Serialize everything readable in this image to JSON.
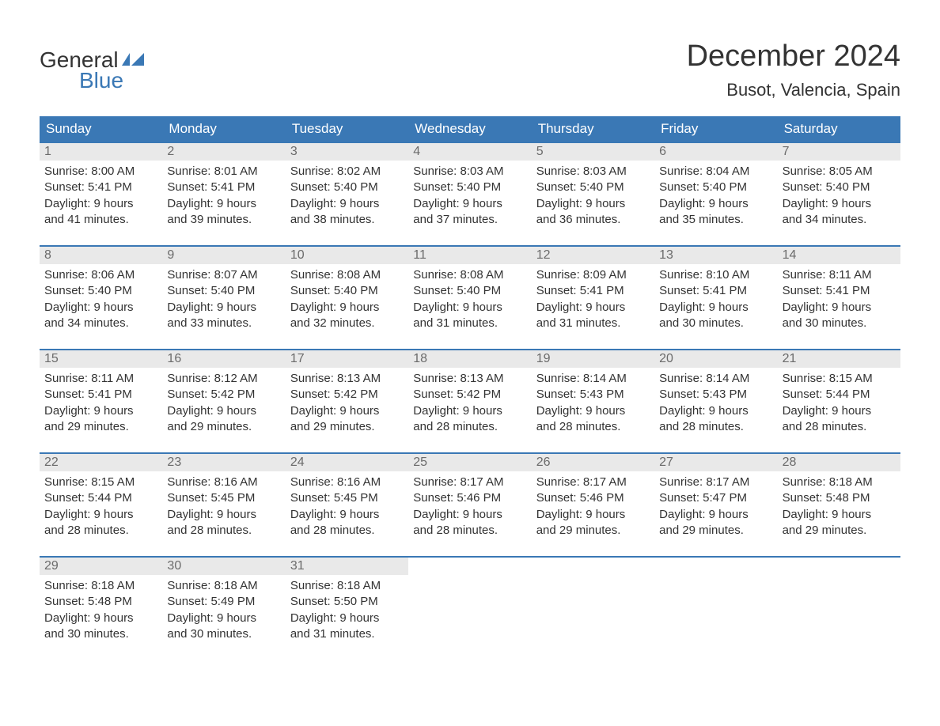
{
  "logo": {
    "text1": "General",
    "text2": "Blue",
    "icon_color": "#3a78b5"
  },
  "header": {
    "month_title": "December 2024",
    "location": "Busot, Valencia, Spain"
  },
  "colors": {
    "header_bg": "#3a78b5",
    "header_text": "#ffffff",
    "daynum_bg": "#e9e9e9",
    "daynum_text": "#6b6b6b",
    "body_text": "#333333",
    "page_bg": "#ffffff",
    "row_border": "#3a78b5"
  },
  "typography": {
    "month_title_fontsize": 38,
    "location_fontsize": 22,
    "weekday_fontsize": 17,
    "daynum_fontsize": 16,
    "body_fontsize": 15,
    "logo_fontsize": 28,
    "font_family": "Arial"
  },
  "weekdays": [
    "Sunday",
    "Monday",
    "Tuesday",
    "Wednesday",
    "Thursday",
    "Friday",
    "Saturday"
  ],
  "weeks": [
    [
      {
        "day": "1",
        "sunrise": "Sunrise: 8:00 AM",
        "sunset": "Sunset: 5:41 PM",
        "daylight1": "Daylight: 9 hours",
        "daylight2": "and 41 minutes."
      },
      {
        "day": "2",
        "sunrise": "Sunrise: 8:01 AM",
        "sunset": "Sunset: 5:41 PM",
        "daylight1": "Daylight: 9 hours",
        "daylight2": "and 39 minutes."
      },
      {
        "day": "3",
        "sunrise": "Sunrise: 8:02 AM",
        "sunset": "Sunset: 5:40 PM",
        "daylight1": "Daylight: 9 hours",
        "daylight2": "and 38 minutes."
      },
      {
        "day": "4",
        "sunrise": "Sunrise: 8:03 AM",
        "sunset": "Sunset: 5:40 PM",
        "daylight1": "Daylight: 9 hours",
        "daylight2": "and 37 minutes."
      },
      {
        "day": "5",
        "sunrise": "Sunrise: 8:03 AM",
        "sunset": "Sunset: 5:40 PM",
        "daylight1": "Daylight: 9 hours",
        "daylight2": "and 36 minutes."
      },
      {
        "day": "6",
        "sunrise": "Sunrise: 8:04 AM",
        "sunset": "Sunset: 5:40 PM",
        "daylight1": "Daylight: 9 hours",
        "daylight2": "and 35 minutes."
      },
      {
        "day": "7",
        "sunrise": "Sunrise: 8:05 AM",
        "sunset": "Sunset: 5:40 PM",
        "daylight1": "Daylight: 9 hours",
        "daylight2": "and 34 minutes."
      }
    ],
    [
      {
        "day": "8",
        "sunrise": "Sunrise: 8:06 AM",
        "sunset": "Sunset: 5:40 PM",
        "daylight1": "Daylight: 9 hours",
        "daylight2": "and 34 minutes."
      },
      {
        "day": "9",
        "sunrise": "Sunrise: 8:07 AM",
        "sunset": "Sunset: 5:40 PM",
        "daylight1": "Daylight: 9 hours",
        "daylight2": "and 33 minutes."
      },
      {
        "day": "10",
        "sunrise": "Sunrise: 8:08 AM",
        "sunset": "Sunset: 5:40 PM",
        "daylight1": "Daylight: 9 hours",
        "daylight2": "and 32 minutes."
      },
      {
        "day": "11",
        "sunrise": "Sunrise: 8:08 AM",
        "sunset": "Sunset: 5:40 PM",
        "daylight1": "Daylight: 9 hours",
        "daylight2": "and 31 minutes."
      },
      {
        "day": "12",
        "sunrise": "Sunrise: 8:09 AM",
        "sunset": "Sunset: 5:41 PM",
        "daylight1": "Daylight: 9 hours",
        "daylight2": "and 31 minutes."
      },
      {
        "day": "13",
        "sunrise": "Sunrise: 8:10 AM",
        "sunset": "Sunset: 5:41 PM",
        "daylight1": "Daylight: 9 hours",
        "daylight2": "and 30 minutes."
      },
      {
        "day": "14",
        "sunrise": "Sunrise: 8:11 AM",
        "sunset": "Sunset: 5:41 PM",
        "daylight1": "Daylight: 9 hours",
        "daylight2": "and 30 minutes."
      }
    ],
    [
      {
        "day": "15",
        "sunrise": "Sunrise: 8:11 AM",
        "sunset": "Sunset: 5:41 PM",
        "daylight1": "Daylight: 9 hours",
        "daylight2": "and 29 minutes."
      },
      {
        "day": "16",
        "sunrise": "Sunrise: 8:12 AM",
        "sunset": "Sunset: 5:42 PM",
        "daylight1": "Daylight: 9 hours",
        "daylight2": "and 29 minutes."
      },
      {
        "day": "17",
        "sunrise": "Sunrise: 8:13 AM",
        "sunset": "Sunset: 5:42 PM",
        "daylight1": "Daylight: 9 hours",
        "daylight2": "and 29 minutes."
      },
      {
        "day": "18",
        "sunrise": "Sunrise: 8:13 AM",
        "sunset": "Sunset: 5:42 PM",
        "daylight1": "Daylight: 9 hours",
        "daylight2": "and 28 minutes."
      },
      {
        "day": "19",
        "sunrise": "Sunrise: 8:14 AM",
        "sunset": "Sunset: 5:43 PM",
        "daylight1": "Daylight: 9 hours",
        "daylight2": "and 28 minutes."
      },
      {
        "day": "20",
        "sunrise": "Sunrise: 8:14 AM",
        "sunset": "Sunset: 5:43 PM",
        "daylight1": "Daylight: 9 hours",
        "daylight2": "and 28 minutes."
      },
      {
        "day": "21",
        "sunrise": "Sunrise: 8:15 AM",
        "sunset": "Sunset: 5:44 PM",
        "daylight1": "Daylight: 9 hours",
        "daylight2": "and 28 minutes."
      }
    ],
    [
      {
        "day": "22",
        "sunrise": "Sunrise: 8:15 AM",
        "sunset": "Sunset: 5:44 PM",
        "daylight1": "Daylight: 9 hours",
        "daylight2": "and 28 minutes."
      },
      {
        "day": "23",
        "sunrise": "Sunrise: 8:16 AM",
        "sunset": "Sunset: 5:45 PM",
        "daylight1": "Daylight: 9 hours",
        "daylight2": "and 28 minutes."
      },
      {
        "day": "24",
        "sunrise": "Sunrise: 8:16 AM",
        "sunset": "Sunset: 5:45 PM",
        "daylight1": "Daylight: 9 hours",
        "daylight2": "and 28 minutes."
      },
      {
        "day": "25",
        "sunrise": "Sunrise: 8:17 AM",
        "sunset": "Sunset: 5:46 PM",
        "daylight1": "Daylight: 9 hours",
        "daylight2": "and 28 minutes."
      },
      {
        "day": "26",
        "sunrise": "Sunrise: 8:17 AM",
        "sunset": "Sunset: 5:46 PM",
        "daylight1": "Daylight: 9 hours",
        "daylight2": "and 29 minutes."
      },
      {
        "day": "27",
        "sunrise": "Sunrise: 8:17 AM",
        "sunset": "Sunset: 5:47 PM",
        "daylight1": "Daylight: 9 hours",
        "daylight2": "and 29 minutes."
      },
      {
        "day": "28",
        "sunrise": "Sunrise: 8:18 AM",
        "sunset": "Sunset: 5:48 PM",
        "daylight1": "Daylight: 9 hours",
        "daylight2": "and 29 minutes."
      }
    ],
    [
      {
        "day": "29",
        "sunrise": "Sunrise: 8:18 AM",
        "sunset": "Sunset: 5:48 PM",
        "daylight1": "Daylight: 9 hours",
        "daylight2": "and 30 minutes."
      },
      {
        "day": "30",
        "sunrise": "Sunrise: 8:18 AM",
        "sunset": "Sunset: 5:49 PM",
        "daylight1": "Daylight: 9 hours",
        "daylight2": "and 30 minutes."
      },
      {
        "day": "31",
        "sunrise": "Sunrise: 8:18 AM",
        "sunset": "Sunset: 5:50 PM",
        "daylight1": "Daylight: 9 hours",
        "daylight2": "and 31 minutes."
      },
      null,
      null,
      null,
      null
    ]
  ]
}
